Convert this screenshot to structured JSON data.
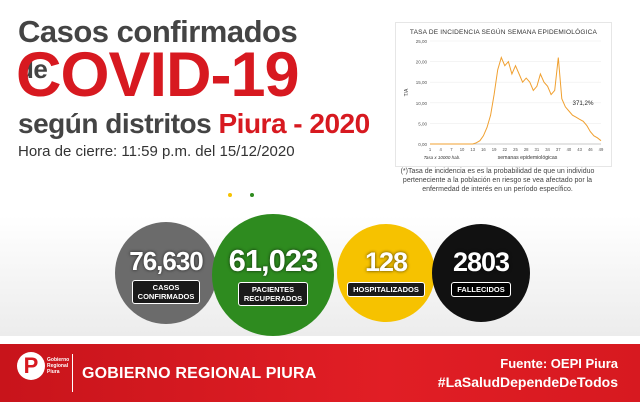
{
  "header": {
    "line1": "Casos confirmados",
    "line1_suffix": "de",
    "line2": "COVID-19",
    "line3_prefix": "según distritos",
    "line3_highlight": "Piura - 2020",
    "closing_time": "Hora de cierre: 11:59 p.m. del 15/12/2020"
  },
  "colors": {
    "brand_red": "#d71920",
    "gray": "#6b6b6b",
    "green": "#2e8b1f",
    "yellow": "#f6c200",
    "black": "#111111",
    "line": "#f0a030"
  },
  "stats": [
    {
      "value": "76,630",
      "label1": "CASOS",
      "label2": "CONFIRMADOS"
    },
    {
      "value": "61,023",
      "label1": "PACIENTES",
      "label2": "RECUPERADOS"
    },
    {
      "value": "128",
      "label1": "HOSPITALIZADOS",
      "label2": ""
    },
    {
      "value": "2803",
      "label1": "FALLECIDOS",
      "label2": ""
    }
  ],
  "chart_data": {
    "type": "line",
    "title": "TASA DE INCIDENCIA SEGÚN SEMANA EPIDEMIOLÓGICA",
    "xlabel": "semanas epidemiológicas",
    "ylabel": "T/A",
    "x_note": "Tasa x 10000 hab.",
    "annotation": "371,2%",
    "xlim": [
      1,
      49
    ],
    "ylim": [
      0,
      25
    ],
    "yticks": [
      "0,00",
      "5,00",
      "10,00",
      "15,00",
      "20,00",
      "25,00"
    ],
    "xticks": [
      "1",
      "4",
      "7",
      "10",
      "13",
      "16",
      "19",
      "22",
      "25",
      "28",
      "31",
      "34",
      "37",
      "40",
      "43",
      "46",
      "49"
    ],
    "x": [
      1,
      2,
      3,
      4,
      5,
      6,
      7,
      8,
      9,
      10,
      11,
      12,
      13,
      14,
      15,
      16,
      17,
      18,
      19,
      20,
      21,
      22,
      23,
      24,
      25,
      26,
      27,
      28,
      29,
      30,
      31,
      32,
      33,
      34,
      35,
      36,
      37,
      38,
      39,
      40,
      41,
      42,
      43,
      44,
      45,
      46,
      47,
      48,
      49
    ],
    "values": [
      0,
      0,
      0,
      0,
      0,
      0,
      0,
      0,
      0,
      0,
      0,
      0,
      0,
      0.3,
      0.8,
      2,
      4,
      7,
      12,
      18,
      21,
      19,
      20,
      17,
      19,
      17,
      15,
      16,
      15,
      13,
      14,
      17,
      15,
      14,
      12,
      13,
      21,
      11,
      9,
      8,
      7,
      6.5,
      6,
      5.5,
      4.5,
      3,
      2,
      1.5,
      0.8
    ]
  },
  "chart_note": "(*)Tasa de incidencia es es la probabilidad de que un individuo perteneciente a la población en riesgo se vea afectado por la enfermedad de interés en un período específico.",
  "footer": {
    "logo_letter": "P",
    "logo_line1": "Gobierno",
    "logo_line2": "Regional",
    "logo_line3": "Piura",
    "organization": "GOBIERNO REGIONAL PIURA",
    "source": "Fuente: OEPI Piura",
    "hashtag": "#LaSaludDependeDeTodos"
  }
}
